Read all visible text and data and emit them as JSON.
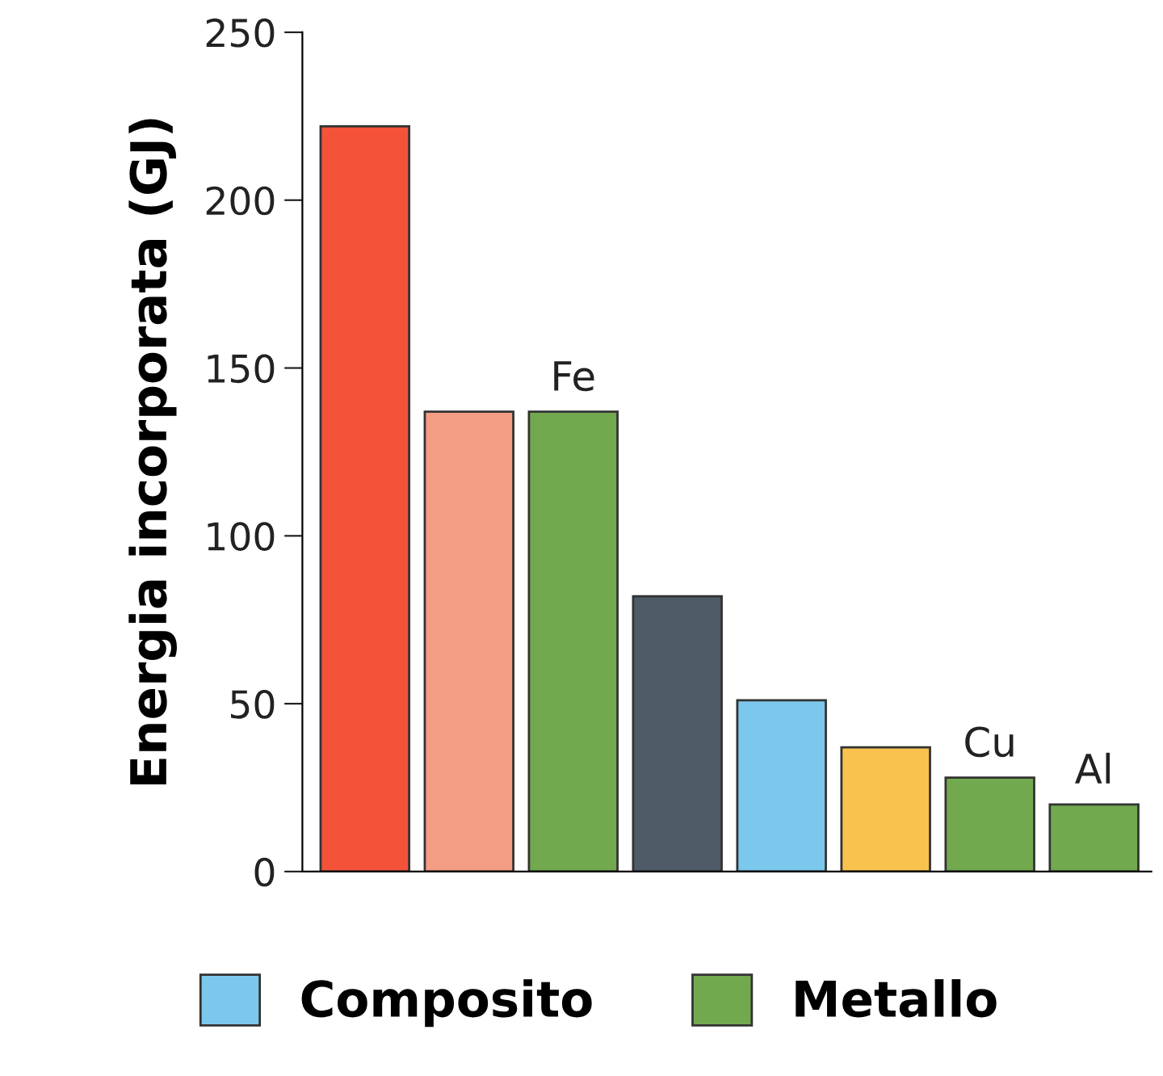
{
  "chart_data": {
    "type": "bar",
    "ylabel": "Energia incorporata (GJ)",
    "categories": [
      null,
      null,
      "Fe",
      null,
      null,
      null,
      "Cu",
      "Al"
    ],
    "series": [
      {
        "colors": [
          "#f4533a",
          "#f59c84",
          null,
          "#4f5b66",
          null,
          "#f9c24e",
          null,
          null
        ],
        "values": [
          222,
          137,
          null,
          82,
          null,
          37,
          null,
          null
        ]
      },
      {
        "name": "Composito",
        "color": "#7cc8ec",
        "values": [
          null,
          null,
          null,
          null,
          51,
          null,
          null,
          null
        ]
      },
      {
        "name": "Metallo",
        "color": "#72a94f",
        "values": [
          null,
          null,
          137,
          null,
          null,
          null,
          28,
          20
        ]
      }
    ],
    "ylim": [
      0,
      250
    ],
    "yticks": [
      0,
      50,
      100,
      150,
      200,
      250
    ],
    "grid": false,
    "legend": "bottom"
  }
}
